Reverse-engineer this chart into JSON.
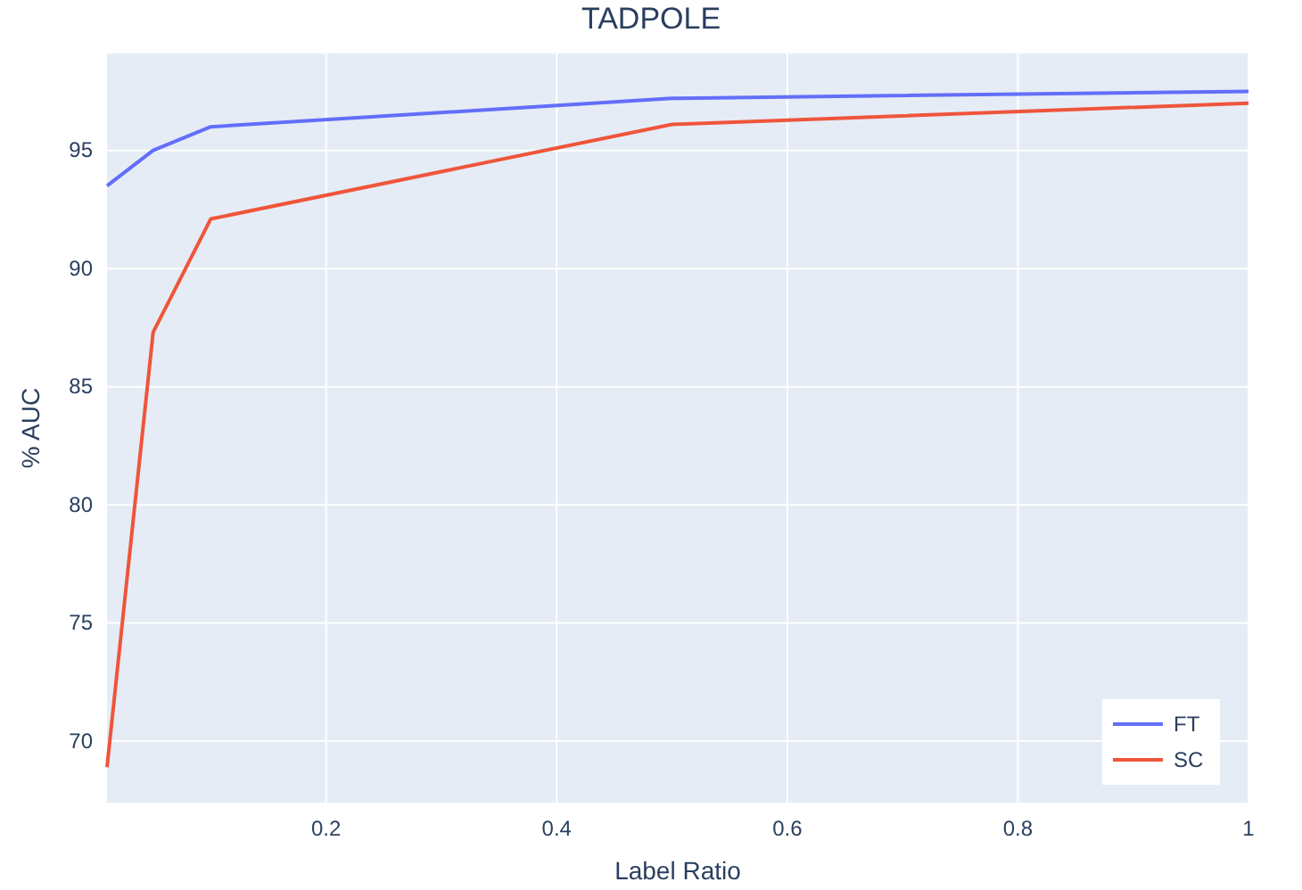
{
  "chart_data": {
    "type": "line",
    "title": "TADPOLE",
    "xlabel": "Label Ratio",
    "ylabel": "% AUC",
    "x": [
      0.01,
      0.05,
      0.1,
      0.5,
      1
    ],
    "series": [
      {
        "name": "FT",
        "color": "#636efa",
        "values": [
          93.5,
          95.0,
          96.0,
          97.2,
          97.5
        ]
      },
      {
        "name": "SC",
        "color": "#ef553b",
        "values": [
          68.9,
          87.3,
          92.1,
          96.1,
          97.0
        ]
      }
    ],
    "xlim": [
      0.01,
      1
    ],
    "xticks": [
      0.2,
      0.4,
      0.6,
      0.8,
      1
    ],
    "ylim": [
      67.4,
      99.1
    ],
    "yticks": [
      70,
      75,
      80,
      85,
      90,
      95
    ],
    "grid": true,
    "legend": "bottom right",
    "marker": "none",
    "line_style": "solid"
  }
}
